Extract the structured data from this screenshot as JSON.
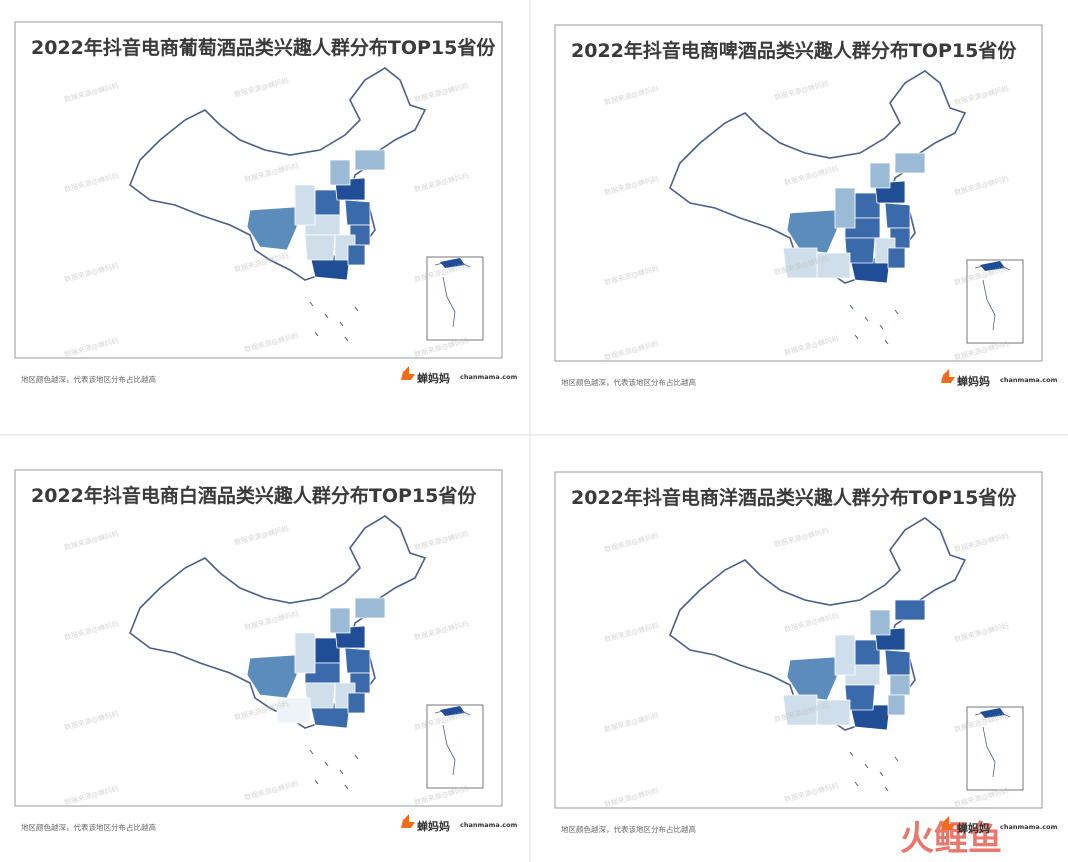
{
  "panels": [
    {
      "title": "2022年抖音电商葡萄酒品类兴趣人群分布TOP15省份",
      "note": "地区颜色越深，代表该地区分布占比越高"
    },
    {
      "title": "2022年抖音电商啤酒品类兴趣人群分布TOP15省份",
      "note": "地区颜色越深，代表该地区分布占比越高"
    },
    {
      "title": "2022年抖音电商白酒品类兴趣人群分布TOP15省份",
      "note": "地区颜色越深，代表该地区分布占比越高"
    },
    {
      "title": "2022年抖音电商洋酒品类兴趣人群分布TOP15省份",
      "note": "地区颜色越深，代表该地区分布占比越高"
    }
  ],
  "brand": {
    "name": "蝉妈妈",
    "site": "chanmama.com"
  },
  "watermark": "数据来源@蝉妈妈",
  "corner_mark": "火鲤鱼"
}
